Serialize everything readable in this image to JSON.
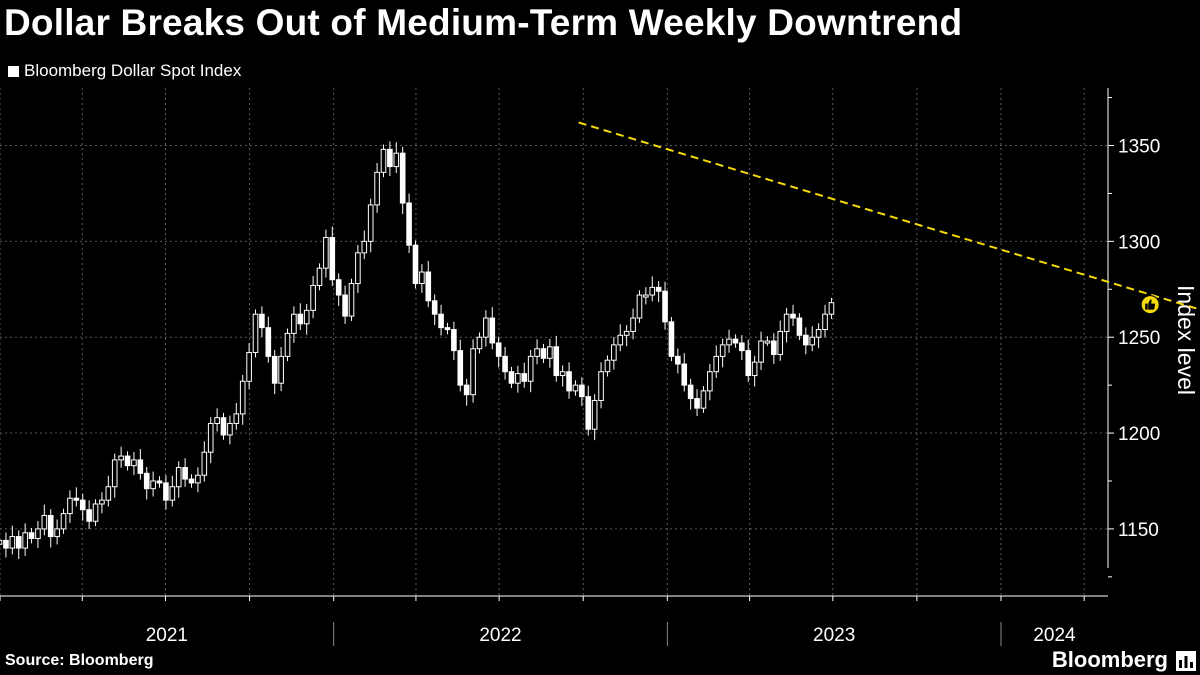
{
  "title": "Dollar Breaks Out of Medium-Term Weekly Downtrend",
  "legend_label": "Bloomberg Dollar Spot Index",
  "source": "Source: Bloomberg",
  "brand": "Bloomberg",
  "colors": {
    "background": "#000000",
    "candle": "#ffffff",
    "trendline": "#f5d90a",
    "grid": "#5a5a5a",
    "marker": "#f5d90a"
  },
  "chart_data": {
    "type": "candlestick",
    "frequency": "weekly",
    "series_name": "Bloomberg Dollar Spot Index",
    "ylabel": "Index level",
    "ylim": [
      1115,
      1380
    ],
    "yticks": [
      1150,
      1200,
      1250,
      1300,
      1350
    ],
    "grid": true,
    "x_labels": [
      "2021",
      "2022",
      "2023",
      "2024"
    ],
    "start": "2020-12-28",
    "close_series": [
      1144,
      1140,
      1146,
      1140,
      1148,
      1145,
      1150,
      1157,
      1146,
      1150,
      1158,
      1166,
      1165,
      1160,
      1154,
      1163,
      1165,
      1172,
      1186,
      1188,
      1183,
      1186,
      1179,
      1171,
      1175,
      1174,
      1165,
      1172,
      1182,
      1176,
      1174,
      1178,
      1190,
      1205,
      1208,
      1199,
      1205,
      1210,
      1227,
      1242,
      1262,
      1255,
      1240,
      1226,
      1240,
      1252,
      1262,
      1257,
      1264,
      1277,
      1286,
      1302,
      1280,
      1272,
      1261,
      1278,
      1294,
      1300,
      1319,
      1336,
      1348,
      1339,
      1346,
      1320,
      1298,
      1278,
      1284,
      1269,
      1262,
      1255,
      1254,
      1243,
      1225,
      1220,
      1244,
      1250,
      1260,
      1247,
      1240,
      1232,
      1226,
      1231,
      1227,
      1240,
      1244,
      1239,
      1245,
      1230,
      1232,
      1222,
      1225,
      1219,
      1202,
      1217,
      1232,
      1238,
      1246,
      1251,
      1253,
      1260,
      1272,
      1272,
      1276,
      1274,
      1258,
      1240,
      1236,
      1225,
      1218,
      1213,
      1222,
      1232,
      1240,
      1246,
      1249,
      1247,
      1243,
      1230,
      1237,
      1248,
      1248,
      1241,
      1253,
      1262,
      1260,
      1251,
      1246,
      1250,
      1254,
      1262,
      1268
    ],
    "trendline": {
      "start_date": "2022-09-26",
      "start_value": 1362,
      "end_date": "2024-06-24",
      "end_value": 1258
    },
    "highlight": {
      "date": "2024-06-10",
      "value": 1267
    }
  }
}
